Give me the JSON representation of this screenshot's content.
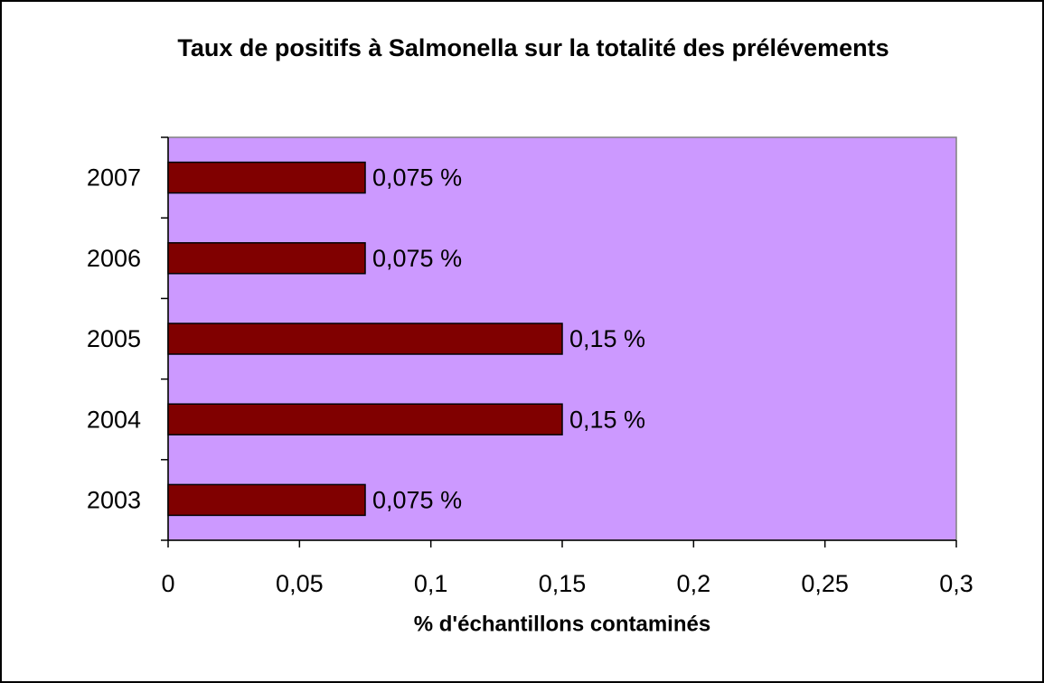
{
  "chart_data": {
    "type": "bar",
    "orientation": "horizontal",
    "title": "Taux de positifs à Salmonella sur la totalité des prélévements",
    "x_label": "% d'échantillons contaminés",
    "categories": [
      "2003",
      "2004",
      "2005",
      "2006",
      "2007"
    ],
    "values": [
      0.075,
      0.15,
      0.15,
      0.075,
      0.075
    ],
    "value_labels": [
      "0,075 %",
      "0,15 %",
      "0,15 %",
      "0,075 %",
      "0,075 %"
    ],
    "color": "#800000",
    "plot_background": "#cc99ff",
    "xlim": [
      0,
      0.3
    ],
    "xticks": [
      0,
      {
        "value": 0.05,
        "label": "0,05"
      },
      {
        "value": 0.1,
        "label": "0,1"
      },
      {
        "value": 0.15,
        "label": "0,15"
      },
      {
        "value": 0.2,
        "label": "0,2"
      },
      {
        "value": 0.25,
        "label": "0,25"
      },
      {
        "value": 0.3,
        "label": "0,3"
      }
    ],
    "grid": false
  }
}
